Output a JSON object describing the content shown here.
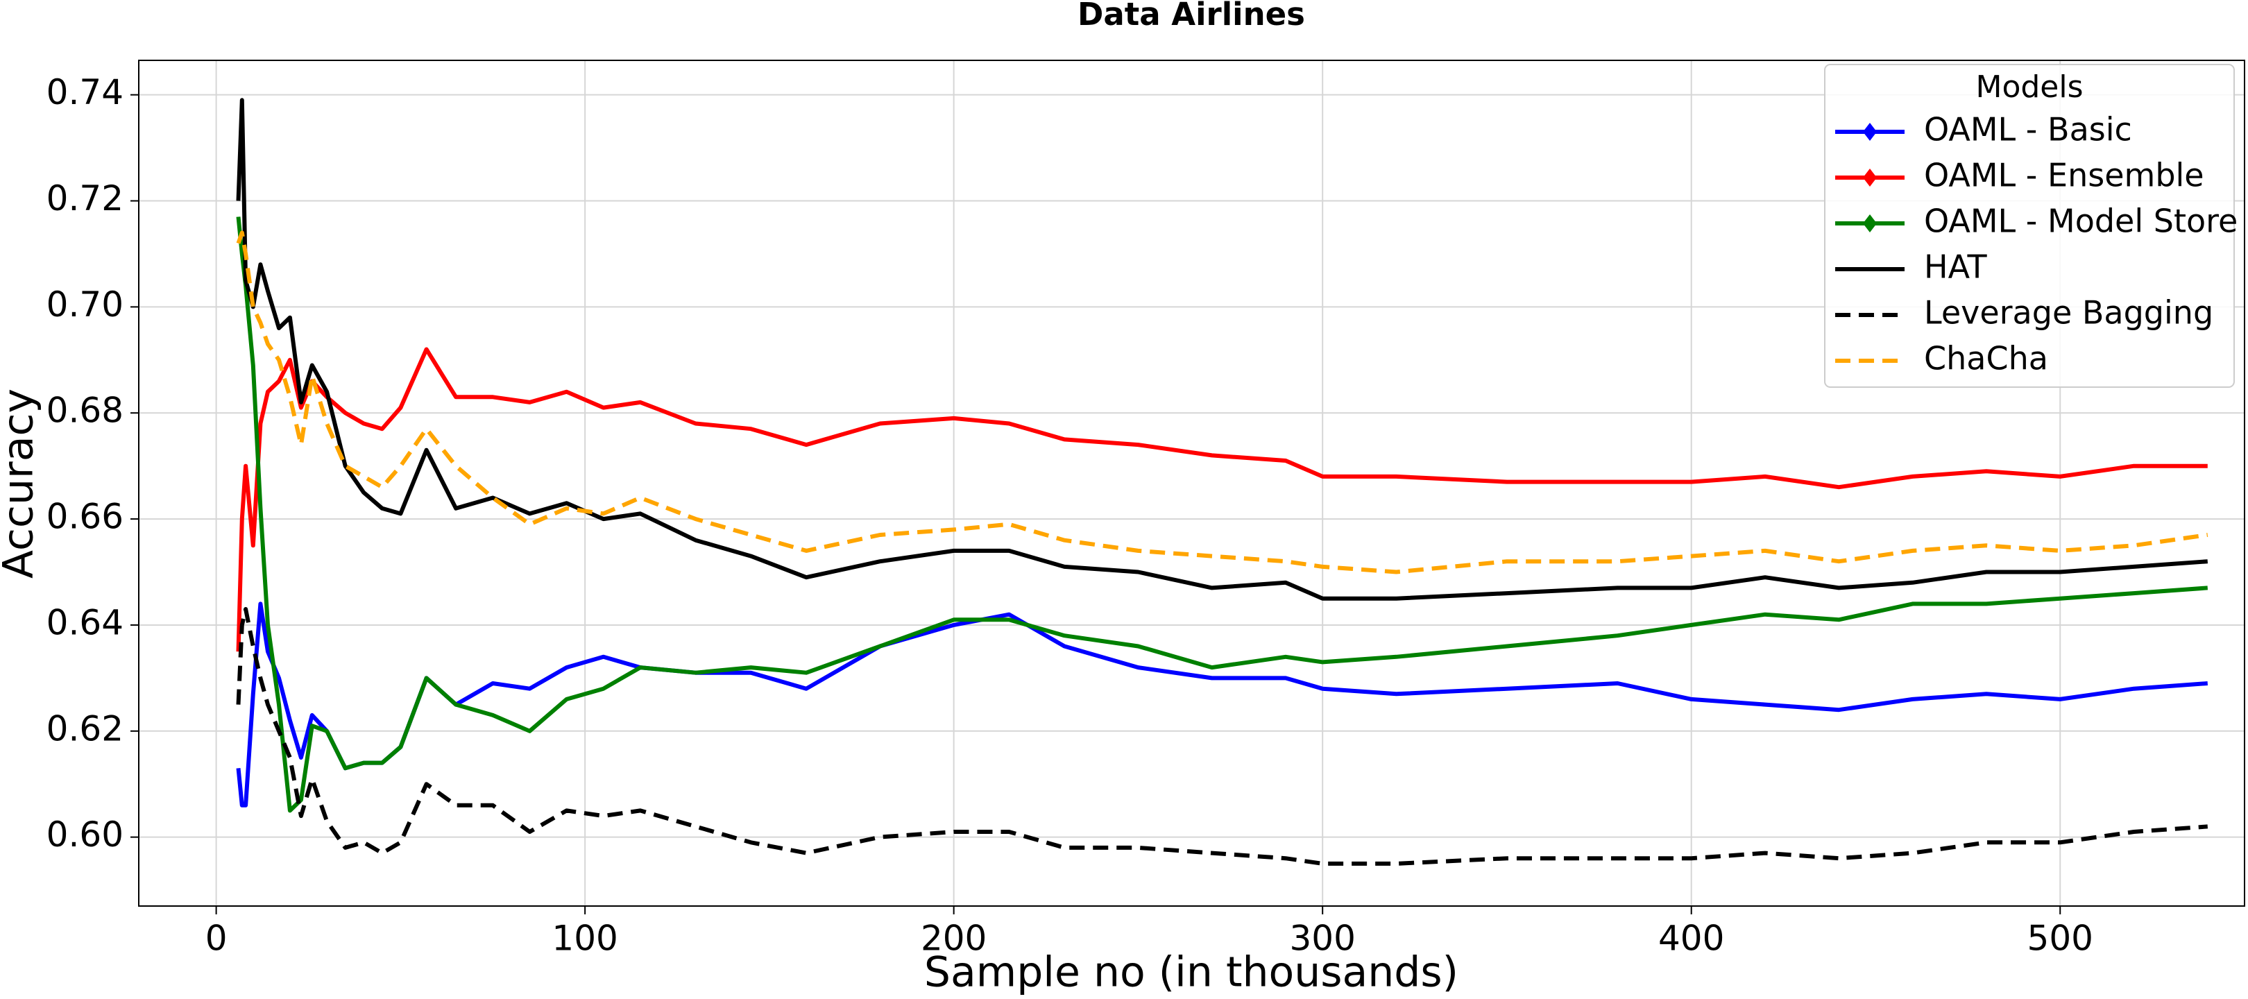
{
  "chart_data": {
    "type": "line",
    "title": "Data Airlines",
    "xlabel": "Sample no (in thousands)",
    "ylabel": "Accuracy",
    "x": [
      6,
      7,
      8,
      10,
      12,
      14,
      17,
      20,
      23,
      26,
      30,
      35,
      40,
      45,
      50,
      57,
      65,
      75,
      85,
      95,
      105,
      115,
      130,
      145,
      160,
      180,
      200,
      215,
      230,
      250,
      270,
      290,
      300,
      320,
      350,
      380,
      400,
      420,
      440,
      460,
      480,
      500,
      520,
      540
    ],
    "series": [
      {
        "name": "OAML - Basic",
        "color": "#0000ff",
        "linestyle": "solid",
        "marker": "diamond",
        "values": [
          0.613,
          0.606,
          0.606,
          0.627,
          0.644,
          0.635,
          0.63,
          0.622,
          0.615,
          0.623,
          0.62,
          0.613,
          0.614,
          0.614,
          0.617,
          0.63,
          0.625,
          0.629,
          0.628,
          0.632,
          0.634,
          0.632,
          0.631,
          0.631,
          0.628,
          0.636,
          0.64,
          0.642,
          0.636,
          0.632,
          0.63,
          0.63,
          0.628,
          0.627,
          0.628,
          0.629,
          0.626,
          0.625,
          0.624,
          0.626,
          0.627,
          0.626,
          0.628,
          0.629
        ]
      },
      {
        "name": "OAML - Ensemble",
        "color": "#ff0000",
        "linestyle": "solid",
        "marker": "diamond",
        "values": [
          0.635,
          0.66,
          0.67,
          0.655,
          0.678,
          0.684,
          0.686,
          0.69,
          0.681,
          0.686,
          0.683,
          0.68,
          0.678,
          0.677,
          0.681,
          0.692,
          0.683,
          0.683,
          0.682,
          0.684,
          0.681,
          0.682,
          0.678,
          0.677,
          0.674,
          0.678,
          0.679,
          0.678,
          0.675,
          0.674,
          0.672,
          0.671,
          0.668,
          0.668,
          0.667,
          0.667,
          0.667,
          0.668,
          0.666,
          0.668,
          0.669,
          0.668,
          0.67,
          0.67
        ]
      },
      {
        "name": "OAML - Model Store",
        "color": "#008000",
        "linestyle": "solid",
        "marker": "diamond",
        "values": [
          0.717,
          0.71,
          0.704,
          0.689,
          0.662,
          0.64,
          0.625,
          0.605,
          0.607,
          0.621,
          0.62,
          0.613,
          0.614,
          0.614,
          0.617,
          0.63,
          0.625,
          0.623,
          0.62,
          0.626,
          0.628,
          0.632,
          0.631,
          0.632,
          0.631,
          0.636,
          0.641,
          0.641,
          0.638,
          0.636,
          0.632,
          0.634,
          0.633,
          0.634,
          0.636,
          0.638,
          0.64,
          0.642,
          0.641,
          0.644,
          0.644,
          0.645,
          0.646,
          0.647
        ]
      },
      {
        "name": "HAT",
        "color": "#000000",
        "linestyle": "solid",
        "values": [
          0.72,
          0.739,
          0.705,
          0.7,
          0.708,
          0.703,
          0.696,
          0.698,
          0.682,
          0.689,
          0.684,
          0.67,
          0.665,
          0.662,
          0.661,
          0.673,
          0.662,
          0.664,
          0.661,
          0.663,
          0.66,
          0.661,
          0.656,
          0.653,
          0.649,
          0.652,
          0.654,
          0.654,
          0.651,
          0.65,
          0.647,
          0.648,
          0.645,
          0.645,
          0.646,
          0.647,
          0.647,
          0.649,
          0.647,
          0.648,
          0.65,
          0.65,
          0.651,
          0.652
        ]
      },
      {
        "name": "Leverage Bagging",
        "color": "#000000",
        "linestyle": "dashed",
        "values": [
          0.625,
          0.64,
          0.643,
          0.636,
          0.63,
          0.625,
          0.62,
          0.615,
          0.604,
          0.611,
          0.603,
          0.598,
          0.599,
          0.597,
          0.599,
          0.61,
          0.606,
          0.606,
          0.601,
          0.605,
          0.604,
          0.605,
          0.602,
          0.599,
          0.597,
          0.6,
          0.601,
          0.601,
          0.598,
          0.598,
          0.597,
          0.596,
          0.595,
          0.595,
          0.596,
          0.596,
          0.596,
          0.597,
          0.596,
          0.597,
          0.599,
          0.599,
          0.601,
          0.602
        ]
      },
      {
        "name": "ChaCha",
        "color": "#ffa500",
        "linestyle": "dashed",
        "values": [
          0.712,
          0.714,
          0.71,
          0.7,
          0.697,
          0.693,
          0.69,
          0.683,
          0.674,
          0.687,
          0.678,
          0.67,
          0.668,
          0.666,
          0.67,
          0.677,
          0.67,
          0.664,
          0.659,
          0.662,
          0.661,
          0.664,
          0.66,
          0.657,
          0.654,
          0.657,
          0.658,
          0.659,
          0.656,
          0.654,
          0.653,
          0.652,
          0.651,
          0.65,
          0.652,
          0.652,
          0.653,
          0.654,
          0.652,
          0.654,
          0.655,
          0.654,
          0.655,
          0.657
        ]
      }
    ],
    "xlim": [
      -21,
      550
    ],
    "xticks": [
      0,
      100,
      200,
      300,
      400,
      500
    ],
    "ylim": [
      0.587,
      0.7465
    ],
    "yticks": [
      {
        "value": 0.6,
        "label": "0.60"
      },
      0.62,
      0.64,
      0.66,
      0.68,
      {
        "value": 0.7,
        "label": "0.70"
      },
      0.72,
      0.74
    ],
    "grid": true,
    "legend_title": "Models",
    "legend": "upper right"
  }
}
